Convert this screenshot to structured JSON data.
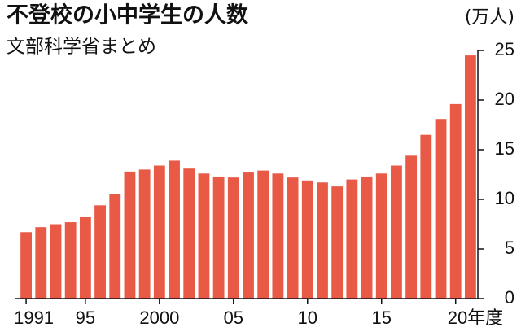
{
  "chart_data": {
    "type": "bar",
    "title": "不登校の小中学生の人数",
    "subtitle": "文部科学省まとめ",
    "unit": "(万人)",
    "categories": [
      "1991",
      null,
      null,
      null,
      "95",
      null,
      null,
      null,
      null,
      "2000",
      null,
      null,
      null,
      null,
      "05",
      null,
      null,
      null,
      null,
      "10",
      null,
      null,
      null,
      null,
      "15",
      null,
      null,
      null,
      null,
      "20年度",
      null
    ],
    "values": [
      6.7,
      7.2,
      7.5,
      7.7,
      8.2,
      9.4,
      10.5,
      12.8,
      13.0,
      13.4,
      13.9,
      13.1,
      12.6,
      12.3,
      12.2,
      12.7,
      12.9,
      12.6,
      12.2,
      11.9,
      11.7,
      11.3,
      12.0,
      12.3,
      12.6,
      13.4,
      14.4,
      16.5,
      18.1,
      19.6,
      24.5
    ],
    "color": "#e85a45",
    "ylim": [
      0,
      25
    ],
    "yticks": [
      0,
      5,
      10,
      15,
      20,
      25
    ]
  }
}
